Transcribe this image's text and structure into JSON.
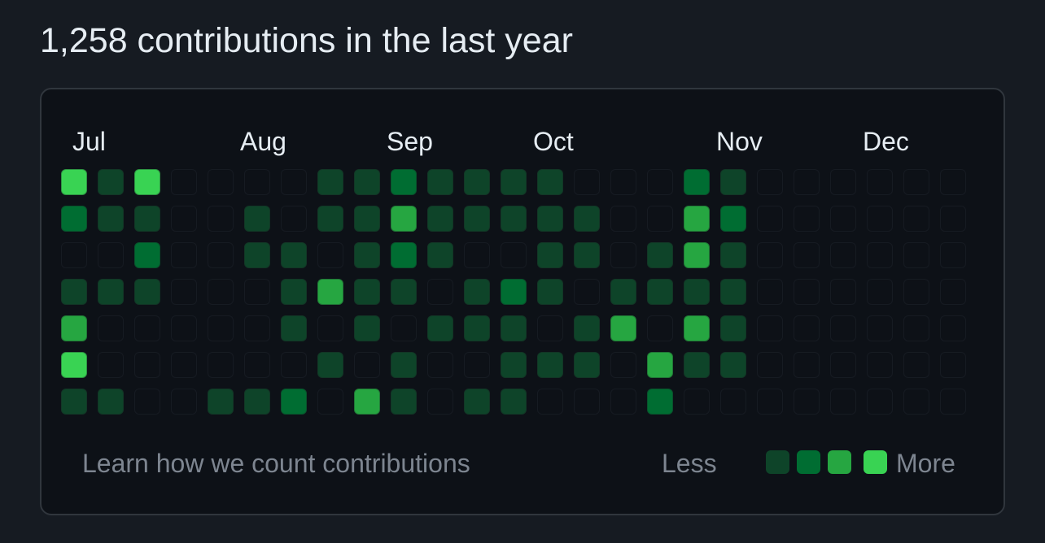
{
  "header": {
    "title": "1,258 contributions in the last year"
  },
  "colors": {
    "level0": "#0d1117",
    "level1": "#0e4429",
    "level2": "#006d32",
    "level3": "#26a641",
    "level4": "#39d353"
  },
  "calendar": {
    "months": [
      "Jul",
      "Aug",
      "Sep",
      "Oct",
      "Nov",
      "Dec"
    ],
    "weeks": [
      [
        4,
        2,
        0,
        1,
        3,
        4,
        1
      ],
      [
        1,
        1,
        0,
        1,
        0,
        0,
        1
      ],
      [
        4,
        1,
        2,
        1,
        0,
        0,
        0
      ],
      [
        0,
        0,
        0,
        0,
        0,
        0,
        0
      ],
      [
        0,
        0,
        0,
        0,
        0,
        0,
        1
      ],
      [
        0,
        1,
        1,
        0,
        0,
        0,
        1
      ],
      [
        0,
        0,
        1,
        1,
        1,
        0,
        2
      ],
      [
        1,
        1,
        0,
        3,
        0,
        1,
        0
      ],
      [
        1,
        1,
        1,
        1,
        1,
        0,
        3
      ],
      [
        2,
        3,
        2,
        1,
        0,
        1,
        1
      ],
      [
        1,
        1,
        1,
        0,
        1,
        0,
        0
      ],
      [
        1,
        1,
        0,
        1,
        1,
        0,
        1
      ],
      [
        1,
        1,
        0,
        2,
        1,
        1,
        1
      ],
      [
        1,
        1,
        1,
        1,
        0,
        1,
        0
      ],
      [
        0,
        1,
        1,
        0,
        1,
        1,
        0
      ],
      [
        0,
        0,
        0,
        1,
        3,
        0,
        0
      ],
      [
        0,
        0,
        1,
        1,
        0,
        3,
        2
      ],
      [
        2,
        3,
        3,
        1,
        3,
        1,
        0
      ],
      [
        1,
        2,
        1,
        1,
        1,
        1,
        0
      ],
      [
        0,
        0,
        0,
        0,
        0,
        0,
        0
      ],
      [
        0,
        0,
        0,
        0,
        0,
        0,
        0
      ],
      [
        0,
        0,
        0,
        0,
        0,
        0,
        0
      ],
      [
        0,
        0,
        0,
        0,
        0,
        0,
        0
      ],
      [
        0,
        0,
        0,
        0,
        0,
        0,
        0
      ],
      [
        0,
        0,
        0,
        0,
        0,
        0,
        0
      ]
    ]
  },
  "footer": {
    "learn_link": "Learn how we count contributions",
    "less_label": "Less",
    "more_label": "More"
  }
}
